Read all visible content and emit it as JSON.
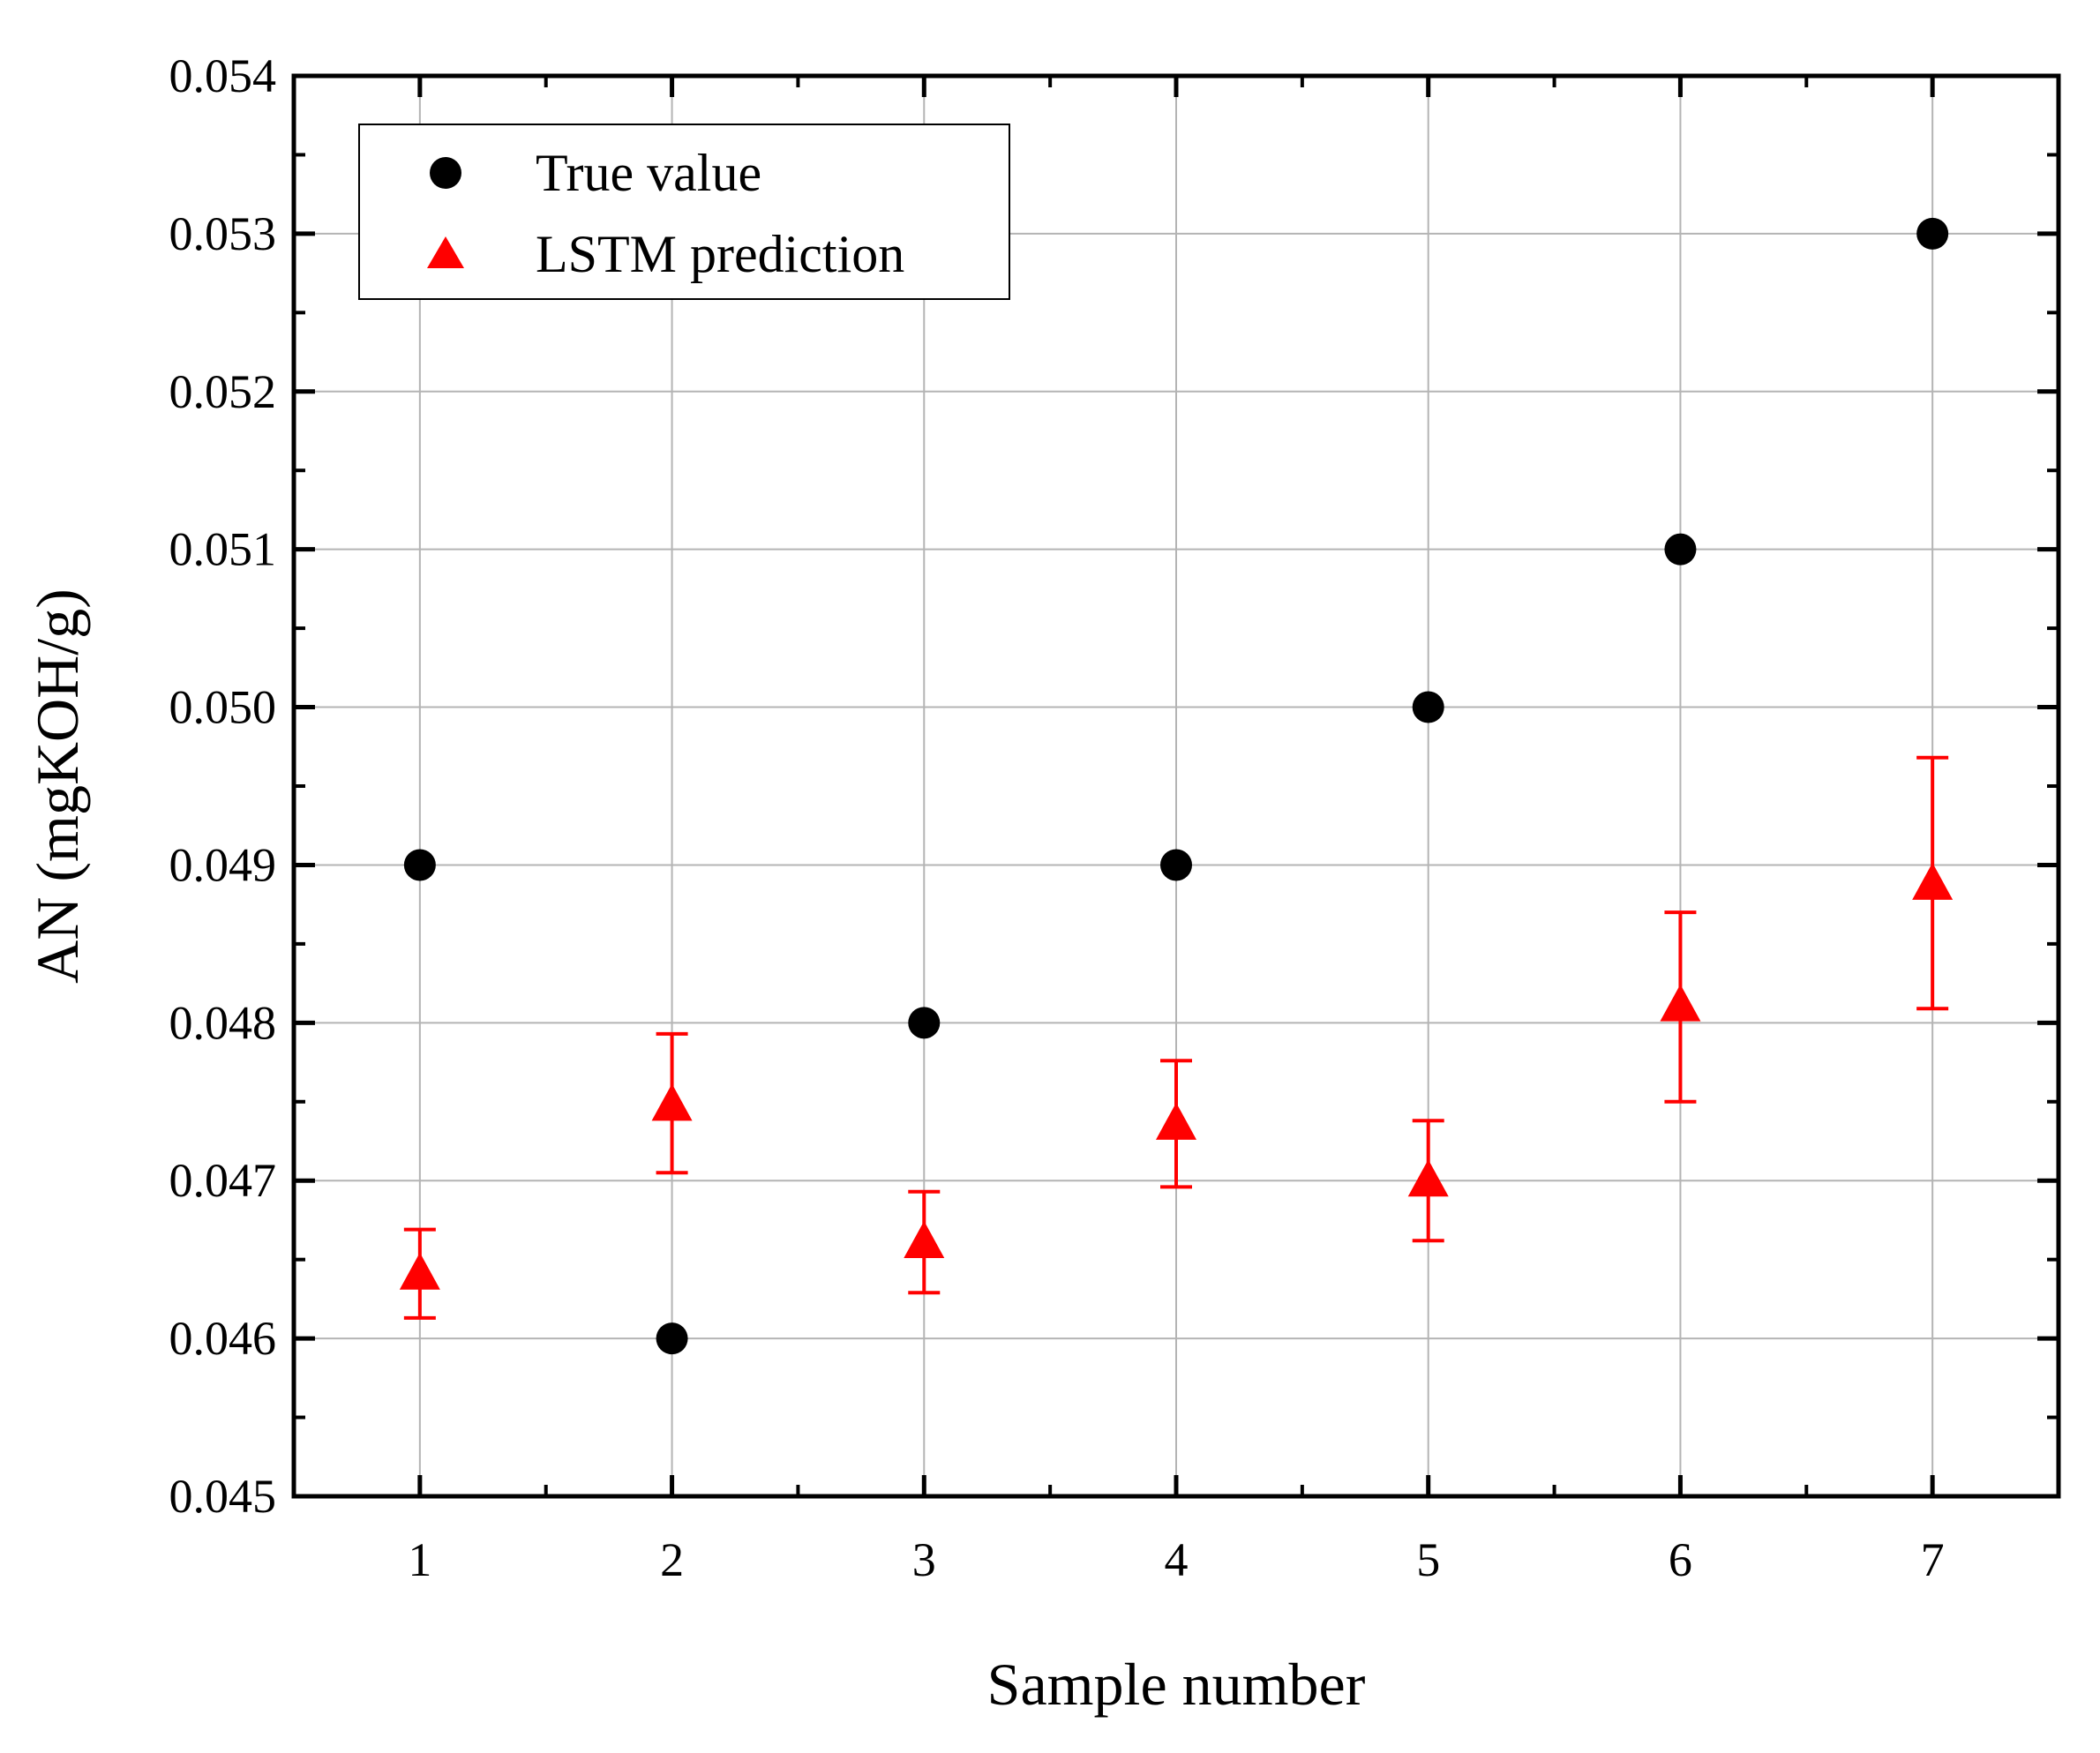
{
  "chart_data": {
    "type": "scatter",
    "title": "",
    "xlabel": "Sample number",
    "ylabel": "AN (mgKOH/g)",
    "xlim": [
      0.5,
      7.5
    ],
    "ylim": [
      0.045,
      0.054
    ],
    "grid": true,
    "x_ticks": [
      "1",
      "2",
      "3",
      "4",
      "5",
      "6",
      "7"
    ],
    "y_ticks": [
      "0.045",
      "0.046",
      "0.047",
      "0.048",
      "0.049",
      "0.050",
      "0.051",
      "0.052",
      "0.053",
      "0.054"
    ],
    "legend_position": "top-left",
    "series": [
      {
        "name": "True value",
        "marker": "circle",
        "color": "#000000",
        "x": [
          1,
          2,
          3,
          4,
          5,
          6,
          7
        ],
        "values": [
          0.049,
          0.046,
          0.048,
          0.049,
          0.05,
          0.051,
          0.053
        ]
      },
      {
        "name": "LSTM prediction",
        "marker": "triangle",
        "color": "#ff0000",
        "x": [
          1,
          2,
          3,
          4,
          5,
          6,
          7
        ],
        "values": [
          0.04641,
          0.04748,
          0.04661,
          0.04736,
          0.047,
          0.04811,
          0.04888
        ],
        "error_low": [
          0.04613,
          0.04705,
          0.04629,
          0.04696,
          0.04662,
          0.0475,
          0.04809
        ],
        "error_high": [
          0.04669,
          0.04793,
          0.04693,
          0.04776,
          0.04738,
          0.0487,
          0.04968
        ]
      }
    ]
  }
}
